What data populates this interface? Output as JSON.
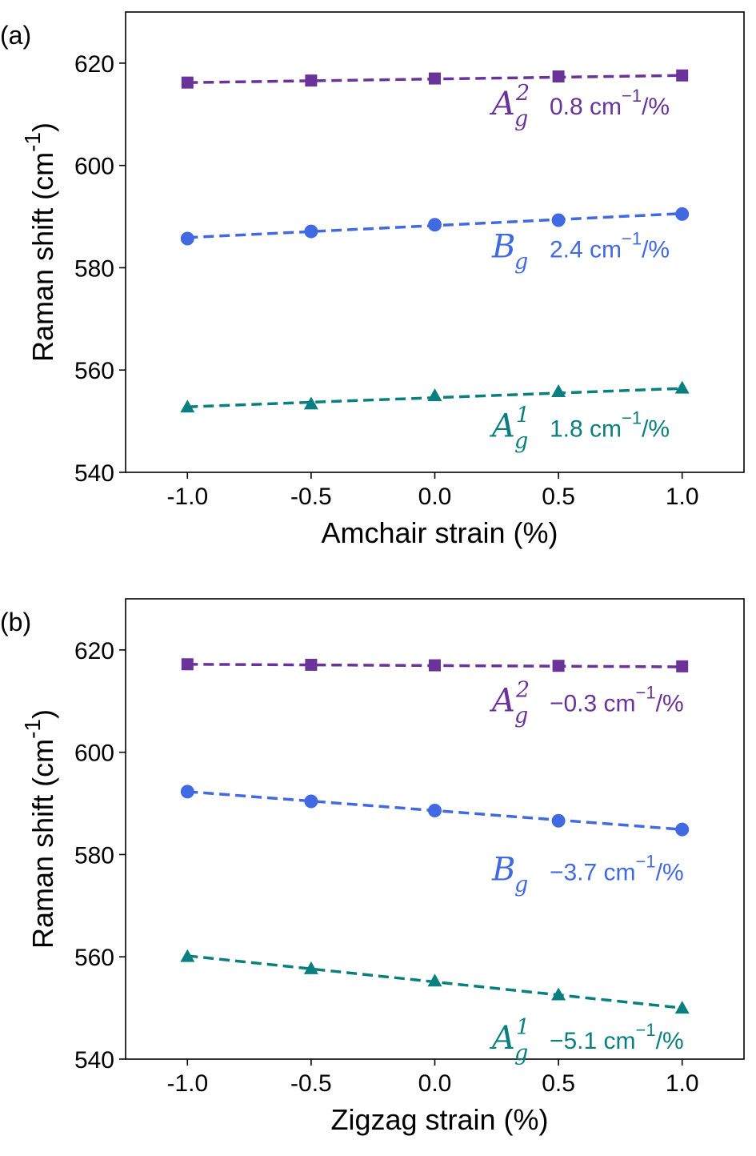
{
  "chart_data": [
    {
      "panel_label": "(a)",
      "type": "line",
      "xlabel": "Amchair strain (%)",
      "ylabel": "Raman shift (cm",
      "ylabel_exp": "-1",
      "ylabel_close": ")",
      "xlim": [
        -1.25,
        1.25
      ],
      "ylim": [
        540,
        630
      ],
      "xticks": [
        -1.0,
        -0.5,
        0.0,
        0.5,
        1.0
      ],
      "xtick_labels": [
        "-1.0",
        "-0.5",
        "0.0",
        "0.5",
        "1.0"
      ],
      "yticks": [
        540,
        560,
        580,
        600,
        620
      ],
      "ytick_labels": [
        "540",
        "560",
        "580",
        "600",
        "620"
      ],
      "x": [
        -1.0,
        -0.5,
        0.0,
        0.5,
        1.0
      ],
      "series": [
        {
          "mode": "A2g",
          "marker": "square",
          "color": "#6a3399",
          "values": [
            616.2,
            616.6,
            617.0,
            617.4,
            617.6
          ],
          "fit": [
            616.2,
            617.6
          ],
          "anno": {
            "sym": "A",
            "sub": "g",
            "sup": "2",
            "rate_pre": "0.8 cm",
            "rate_exp": "−1",
            "rate_post": "/%",
            "at": [
              0.27,
              610
            ]
          }
        },
        {
          "mode": "Bg",
          "marker": "circle",
          "color": "#4169e1",
          "values": [
            585.7,
            587.1,
            588.4,
            589.3,
            590.5
          ],
          "fit": [
            585.9,
            590.6
          ],
          "anno": {
            "sym": "B",
            "sub": "g",
            "sup": "",
            "rate_pre": "2.4 cm",
            "rate_exp": "−1",
            "rate_post": "/%",
            "at": [
              0.27,
              582
            ]
          }
        },
        {
          "mode": "A1g",
          "marker": "triangle",
          "color": "#0a7f7f",
          "values": [
            552.8,
            553.4,
            555.0,
            555.8,
            556.5
          ],
          "fit": [
            552.8,
            556.4
          ],
          "anno": {
            "sym": "A",
            "sub": "g",
            "sup": "1",
            "rate_pre": "1.8 cm",
            "rate_exp": "−1",
            "rate_post": "/%",
            "at": [
              0.27,
              547
            ]
          }
        }
      ]
    },
    {
      "panel_label": "(b)",
      "type": "line",
      "xlabel": "Zigzag strain (%)",
      "ylabel": "Raman shift (cm",
      "ylabel_exp": "-1",
      "ylabel_close": ")",
      "xlim": [
        -1.25,
        1.25
      ],
      "ylim": [
        540,
        630
      ],
      "xticks": [
        -1.0,
        -0.5,
        0.0,
        0.5,
        1.0
      ],
      "xtick_labels": [
        "-1.0",
        "-0.5",
        "0.0",
        "0.5",
        "1.0"
      ],
      "yticks": [
        540,
        560,
        580,
        600,
        620
      ],
      "ytick_labels": [
        "540",
        "560",
        "580",
        "600",
        "620"
      ],
      "x": [
        -1.0,
        -0.5,
        0.0,
        0.5,
        1.0
      ],
      "series": [
        {
          "mode": "A2g",
          "marker": "square",
          "color": "#6a3399",
          "values": [
            617.2,
            617.1,
            617.0,
            616.9,
            616.8
          ],
          "fit": [
            617.2,
            616.7
          ],
          "anno": {
            "sym": "A",
            "sub": "g",
            "sup": "2",
            "rate_pre": "−0.3 cm",
            "rate_exp": "−1",
            "rate_post": "/%",
            "at": [
              0.27,
              608
            ]
          }
        },
        {
          "mode": "Bg",
          "marker": "circle",
          "color": "#4169e1",
          "values": [
            592.3,
            590.4,
            588.6,
            586.6,
            584.9
          ],
          "fit": [
            592.3,
            584.9
          ],
          "anno": {
            "sym": "B",
            "sub": "g",
            "sup": "",
            "rate_pre": "−3.7 cm",
            "rate_exp": "−1",
            "rate_post": "/%",
            "at": [
              0.27,
              575
            ]
          }
        },
        {
          "mode": "A1g",
          "marker": "triangle",
          "color": "#0a7f7f",
          "values": [
            560.1,
            557.7,
            555.3,
            552.6,
            550.0
          ],
          "fit": [
            560.2,
            550.0
          ],
          "anno": {
            "sym": "A",
            "sub": "g",
            "sup": "1",
            "rate_pre": "−5.1 cm",
            "rate_exp": "−1",
            "rate_post": "/%",
            "at": [
              0.27,
              542
            ]
          }
        }
      ]
    }
  ]
}
